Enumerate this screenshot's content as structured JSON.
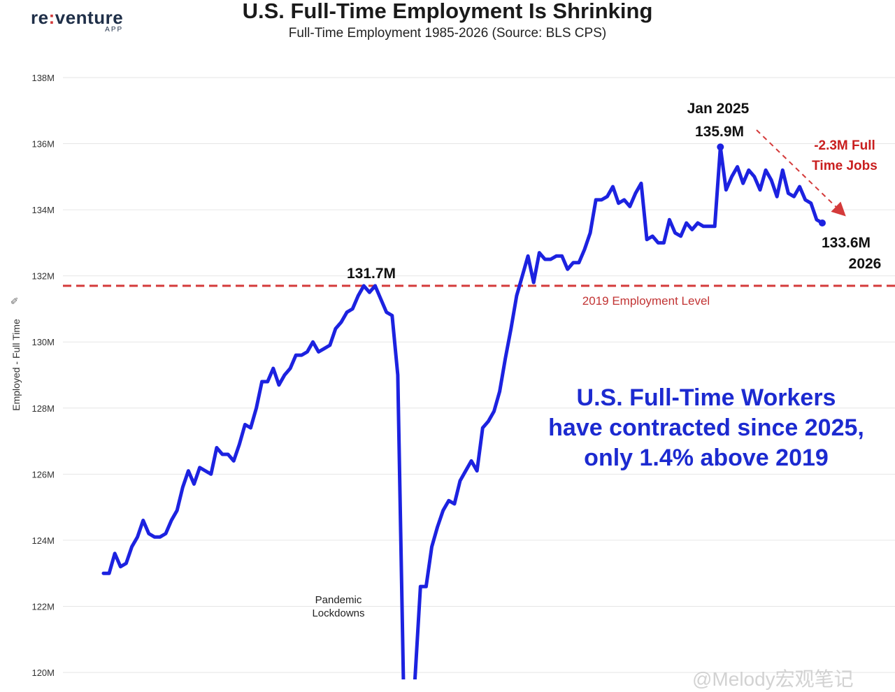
{
  "logo": {
    "main_prefix": "re",
    "main_accent": ":",
    "main_suffix": "venture",
    "sub": "APP"
  },
  "title": "U.S. Full-Time Employment Is Shrinking",
  "subtitle": "Full-Time Employment 1985-2026 (Source: BLS CPS)",
  "callout": {
    "line1": "U.S. Full-Time Workers",
    "line2": "have contracted since 2025,",
    "line3": "only 1.4% above 2019"
  },
  "watermark": "@Melody宏观笔记",
  "colors": {
    "line": "#1c22e0",
    "reference": "#d43a3a",
    "callout": "#1c2ad0",
    "grid": "#e6e6e6"
  },
  "chart_data": {
    "type": "line",
    "ylabel": "Employed - Full Time",
    "ylim": [
      119.7,
      138.4
    ],
    "yticks": [
      120,
      122,
      124,
      126,
      128,
      130,
      132,
      134,
      136,
      138
    ],
    "ytick_labels": [
      "120M",
      "122M",
      "124M",
      "126M",
      "128M",
      "130M",
      "132M",
      "134M",
      "136M",
      "138M"
    ],
    "grid": true,
    "series": [
      {
        "values": [
          123.0,
          123.0,
          123.6,
          123.2,
          123.3,
          123.8,
          124.1,
          124.6,
          124.2,
          124.1,
          124.1,
          124.2,
          124.6,
          124.9,
          125.6,
          126.1,
          125.7,
          126.2,
          126.1,
          126.0,
          126.8,
          126.6,
          126.6,
          126.4,
          126.9,
          127.5,
          127.4,
          128.0,
          128.8,
          128.8,
          129.2,
          128.7,
          129.0,
          129.2,
          129.6,
          129.6,
          129.7,
          130.0,
          129.7,
          129.8,
          129.9,
          130.4,
          130.6,
          130.9,
          131.0,
          131.4,
          131.7,
          131.5,
          131.7,
          131.3,
          130.9,
          130.8,
          129.0,
          119.7,
          119.7,
          119.7,
          122.6,
          122.6,
          123.8,
          124.4,
          124.9,
          125.2,
          125.1,
          125.8,
          126.1,
          126.4,
          126.1,
          127.4,
          127.6,
          127.9,
          128.5,
          129.5,
          130.4,
          131.4,
          132.0,
          132.6,
          131.8,
          132.7,
          132.5,
          132.5,
          132.6,
          132.6,
          132.2,
          132.4,
          132.4,
          132.8,
          133.3,
          134.3,
          134.3,
          134.4,
          134.7,
          134.2,
          134.3,
          134.1,
          134.5,
          134.8,
          133.1,
          133.2,
          133.0,
          133.0,
          133.7,
          133.3,
          133.2,
          133.6,
          133.4,
          133.6,
          133.5,
          133.5,
          133.5,
          135.9,
          134.6,
          135.0,
          135.3,
          134.8,
          135.2,
          135.0,
          134.6,
          135.2,
          134.9,
          134.4,
          135.2,
          134.5,
          134.4,
          134.7,
          134.3,
          134.2,
          133.7,
          133.6
        ]
      }
    ],
    "reference_line": {
      "value": 131.7,
      "label": "2019 Employment Level"
    },
    "annotations": {
      "peak_2019": "131.7M",
      "peak_2025_date": "Jan 2025",
      "peak_2025_value": "135.9M",
      "drop_line1": "-2.3M Full",
      "drop_line2": "Time Jobs",
      "latest_value": "133.6M",
      "latest_date": "2026",
      "pandemic_line1": "Pandemic",
      "pandemic_line2": "Lockdowns"
    }
  }
}
